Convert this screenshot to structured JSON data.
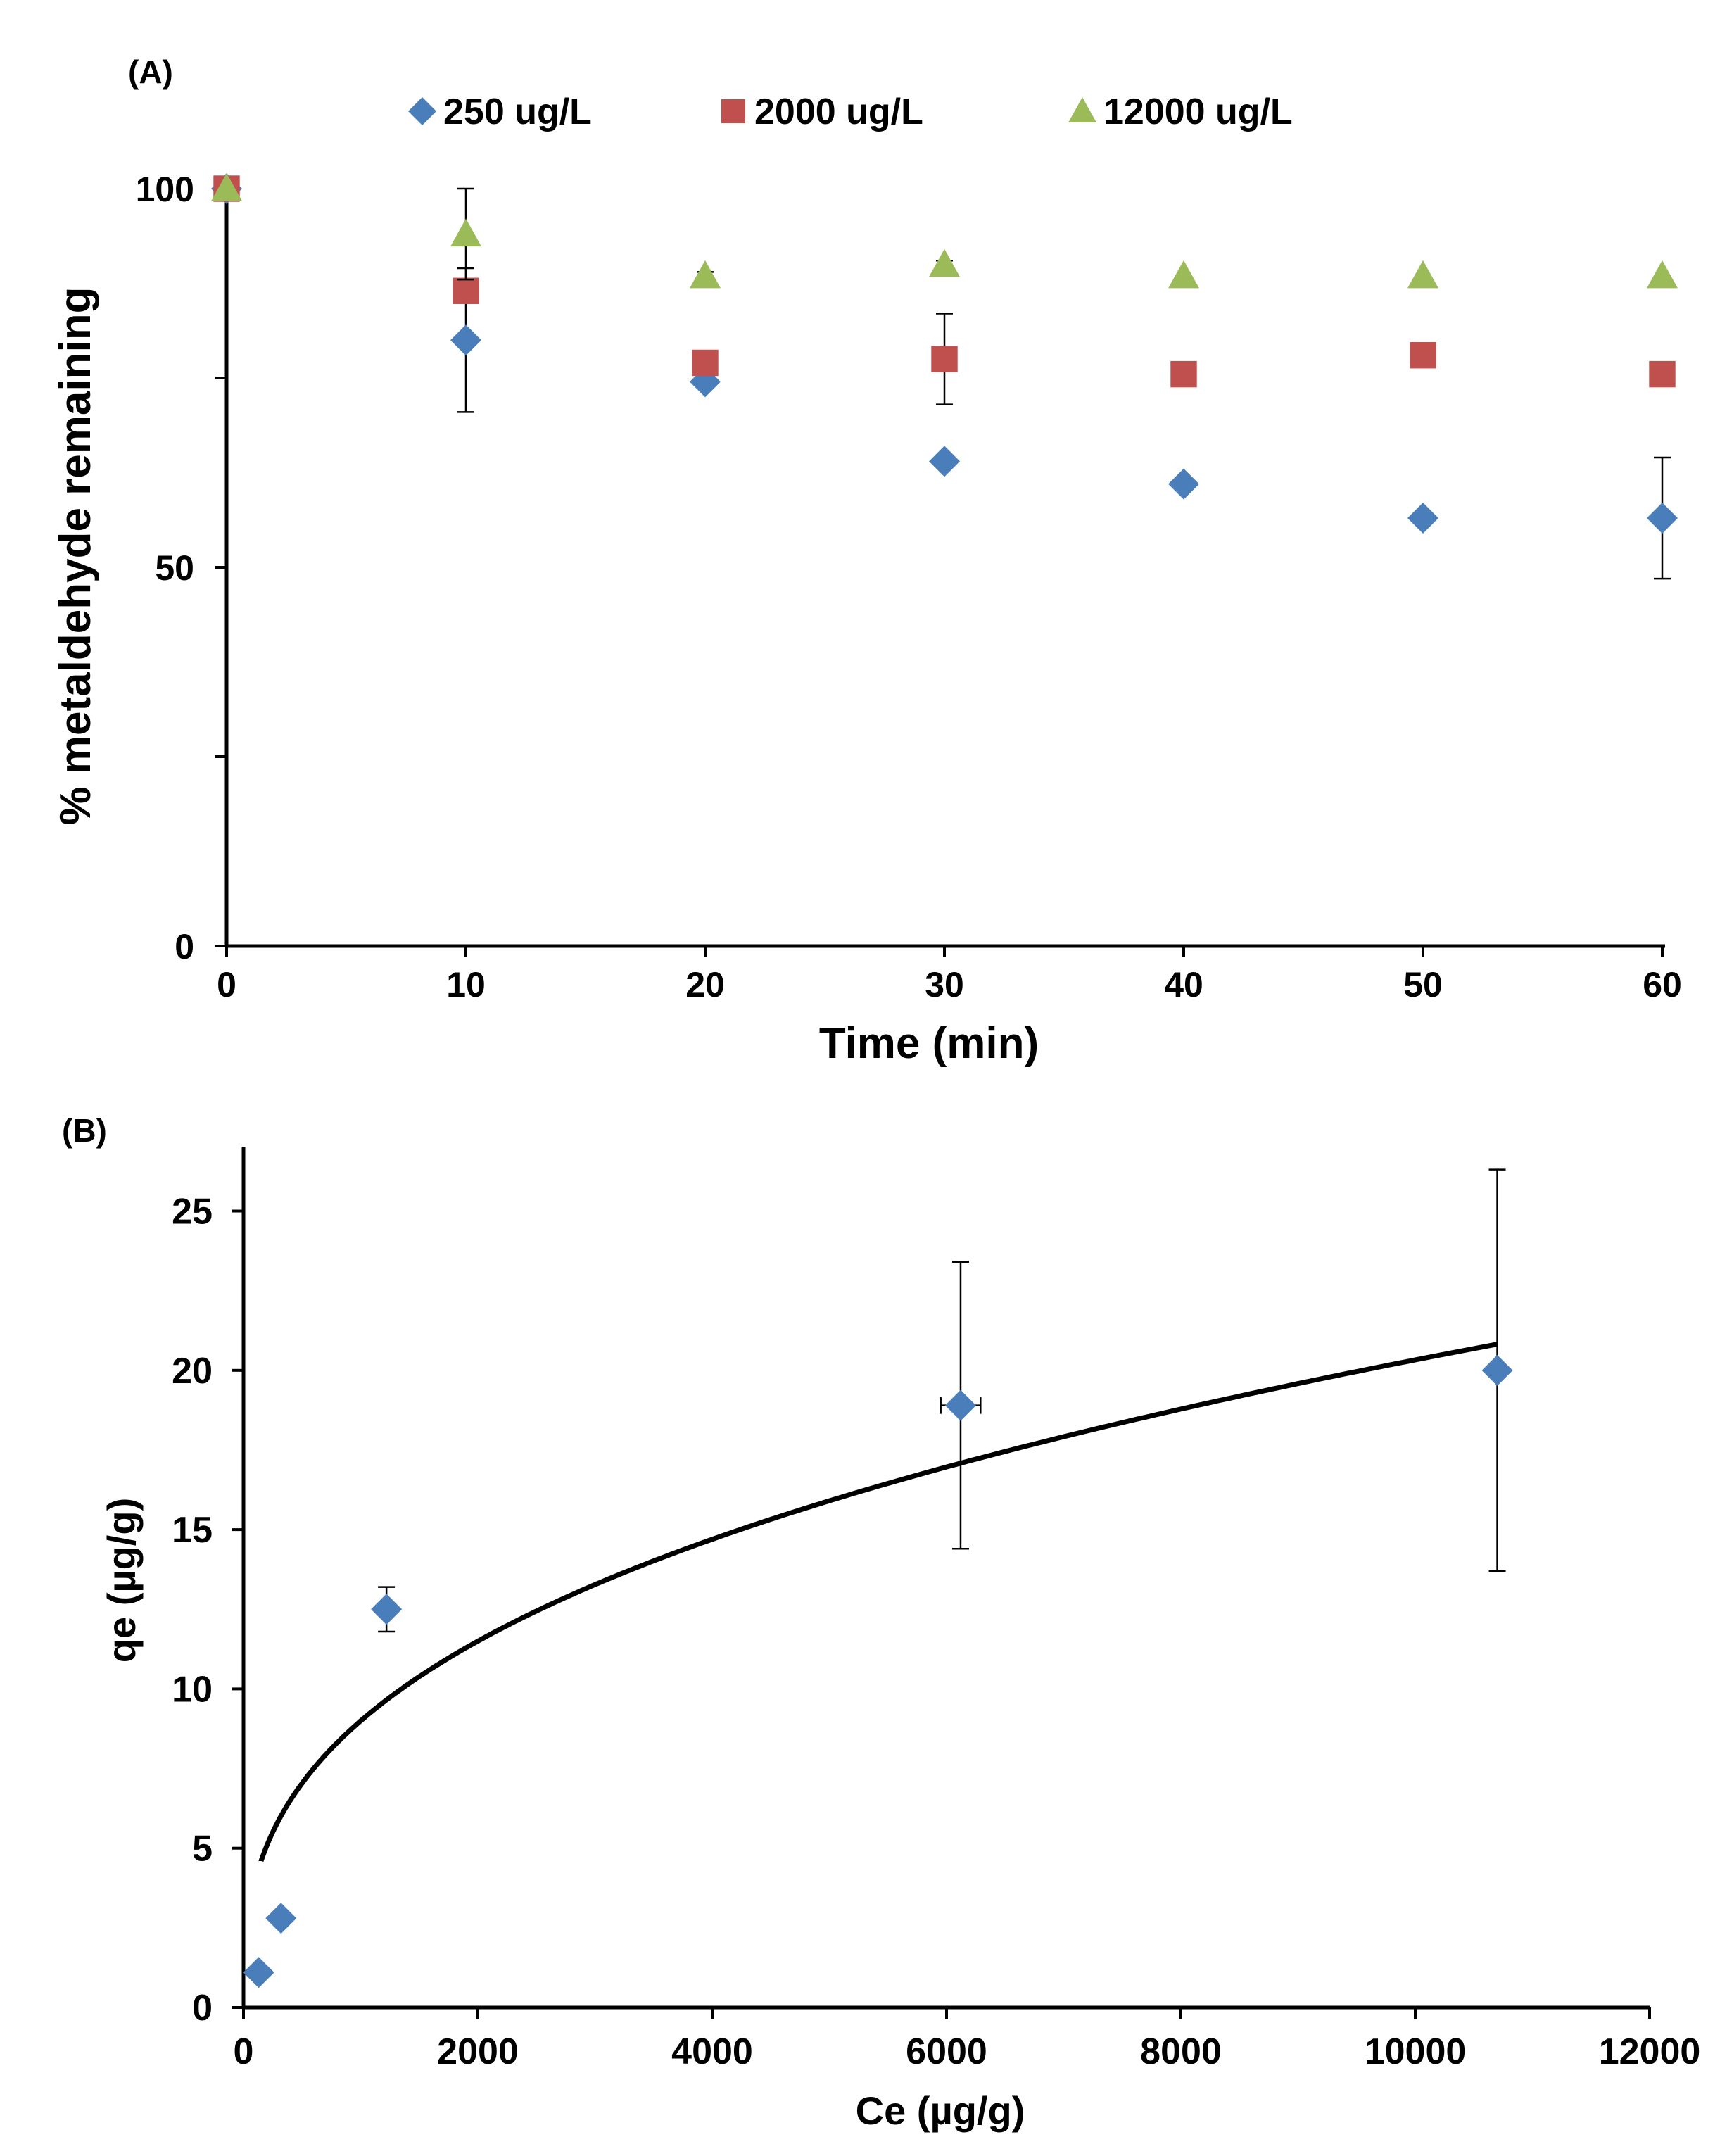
{
  "chart_data": [
    {
      "panel_label": "(A)",
      "type": "scatter",
      "xlabel": "Time (min)",
      "ylabel": "% metaldehyde remaining",
      "xlim": [
        0,
        60
      ],
      "ylim": [
        0,
        100
      ],
      "xticks": [
        "0",
        "10",
        "20",
        "30",
        "40",
        "50",
        "60"
      ],
      "yticks": [
        "0",
        "50",
        "100"
      ],
      "legend_position": "top",
      "series": [
        {
          "name": "250 ug/L",
          "marker": "diamond",
          "color": "#4a7ebb",
          "x": [
            0,
            10,
            20,
            30,
            40,
            50,
            60
          ],
          "y": [
            100,
            80,
            74.5,
            64,
            61,
            56.5,
            56.5
          ],
          "err": [
            0,
            9.5,
            0,
            0,
            0,
            0,
            8
          ]
        },
        {
          "name": "2000 ug/L",
          "marker": "square",
          "color": "#c0504d",
          "x": [
            0,
            10,
            20,
            30,
            40,
            50,
            60
          ],
          "y": [
            100,
            86.5,
            77,
            77.5,
            75.5,
            78,
            75.5
          ],
          "err": [
            0,
            0,
            0.5,
            6,
            0,
            0,
            0.5
          ]
        },
        {
          "name": "12000 ug/L",
          "marker": "triangle",
          "color": "#9bbb59",
          "x": [
            0,
            10,
            20,
            30,
            40,
            50,
            60
          ],
          "y": [
            100,
            94,
            88.5,
            90,
            88.5,
            88.5,
            88.5
          ],
          "err": [
            0,
            6,
            0.5,
            0.5,
            0,
            0,
            0
          ]
        }
      ]
    },
    {
      "panel_label": "(B)",
      "type": "scatter",
      "xlabel": "Ce (µg/g)",
      "ylabel": "qe (µg/g)",
      "xlim": [
        0,
        12000
      ],
      "ylim": [
        0,
        27
      ],
      "xticks": [
        "0",
        "2000",
        "4000",
        "6000",
        "8000",
        "10000",
        "12000"
      ],
      "yticks": [
        "0",
        "5",
        "10",
        "15",
        "20",
        "25"
      ],
      "series": [
        {
          "name": "",
          "marker": "diamond",
          "color": "#4a7ebb",
          "x": [
            130,
            320,
            1220,
            6120,
            10700
          ],
          "y": [
            1.1,
            2.8,
            12.5,
            18.9,
            20
          ],
          "yerr": [
            0,
            0,
            0.7,
            4.5,
            6.3
          ],
          "xerr": [
            0,
            0,
            0,
            170,
            0
          ]
        }
      ],
      "fit_curve": {
        "model": "freundlich",
        "K": 0.78,
        "n": 0.354,
        "x_start": 150,
        "x_end": 10700
      }
    }
  ]
}
